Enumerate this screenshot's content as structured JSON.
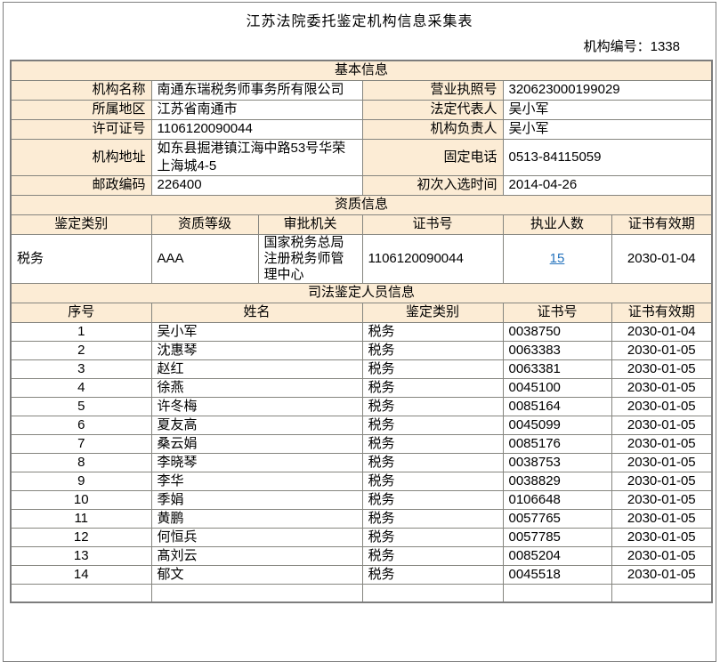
{
  "page": {
    "title": "江苏法院委托鉴定机构信息采集表",
    "org_code_label": "机构编号：",
    "org_code_value": "1338"
  },
  "colors": {
    "header_bg": "#fcecd5",
    "border": "#85857f",
    "link_blue": "#2674be"
  },
  "basic": {
    "section_title": "基本信息",
    "rows": [
      [
        {
          "label": "机构名称",
          "value": "南通东瑞税务师事务所有限公司"
        },
        {
          "label": "营业执照号",
          "value": "320623000199029"
        }
      ],
      [
        {
          "label": "所属地区",
          "value": "江苏省南通市"
        },
        {
          "label": "法定代表人",
          "value": "吴小军"
        }
      ],
      [
        {
          "label": "许可证号",
          "value": "1106120090044"
        },
        {
          "label": "机构负责人",
          "value": "吴小军"
        }
      ],
      [
        {
          "label": "机构地址",
          "value": "如东县掘港镇江海中路53号华荣上海城4-5"
        },
        {
          "label": "固定电话",
          "value": "0513-84115059"
        }
      ],
      [
        {
          "label": "邮政编码",
          "value": "226400"
        },
        {
          "label": "初次入选时间",
          "value": "2014-04-26"
        }
      ]
    ]
  },
  "qualification": {
    "section_title": "资质信息",
    "headers": [
      "鉴定类别",
      "资质等级",
      "审批机关",
      "证书号",
      "执业人数",
      "证书有效期"
    ],
    "rows": [
      [
        "税务",
        "AAA",
        "国家税务总局注册税务师管理中心",
        "1106120090044",
        "15",
        "2030-01-04"
      ]
    ],
    "link_column_index": 4
  },
  "personnel": {
    "section_title": "司法鉴定人员信息",
    "headers": [
      "序号",
      "姓名",
      "鉴定类别",
      "证书号",
      "证书有效期"
    ],
    "rows": [
      [
        "1",
        "吴小军",
        "税务",
        "0038750",
        "2030-01-04"
      ],
      [
        "2",
        "沈惠琴",
        "税务",
        "0063383",
        "2030-01-05"
      ],
      [
        "3",
        "赵红",
        "税务",
        "0063381",
        "2030-01-05"
      ],
      [
        "4",
        "徐燕",
        "税务",
        "0045100",
        "2030-01-05"
      ],
      [
        "5",
        "许冬梅",
        "税务",
        "0085164",
        "2030-01-05"
      ],
      [
        "6",
        "夏友高",
        "税务",
        "0045099",
        "2030-01-05"
      ],
      [
        "7",
        "桑云娟",
        "税务",
        "0085176",
        "2030-01-05"
      ],
      [
        "8",
        "李晓琴",
        "税务",
        "0038753",
        "2030-01-05"
      ],
      [
        "9",
        "李华",
        "税务",
        "0038829",
        "2030-01-05"
      ],
      [
        "10",
        "季娟",
        "税务",
        "0106648",
        "2030-01-05"
      ],
      [
        "11",
        "黄鹏",
        "税务",
        "0057765",
        "2030-01-05"
      ],
      [
        "12",
        "何恒兵",
        "税务",
        "0057785",
        "2030-01-05"
      ],
      [
        "13",
        "髙刘云",
        "税务",
        "0085204",
        "2030-01-05"
      ],
      [
        "14",
        "郁文",
        "税务",
        "0045518",
        "2030-01-05"
      ]
    ]
  }
}
